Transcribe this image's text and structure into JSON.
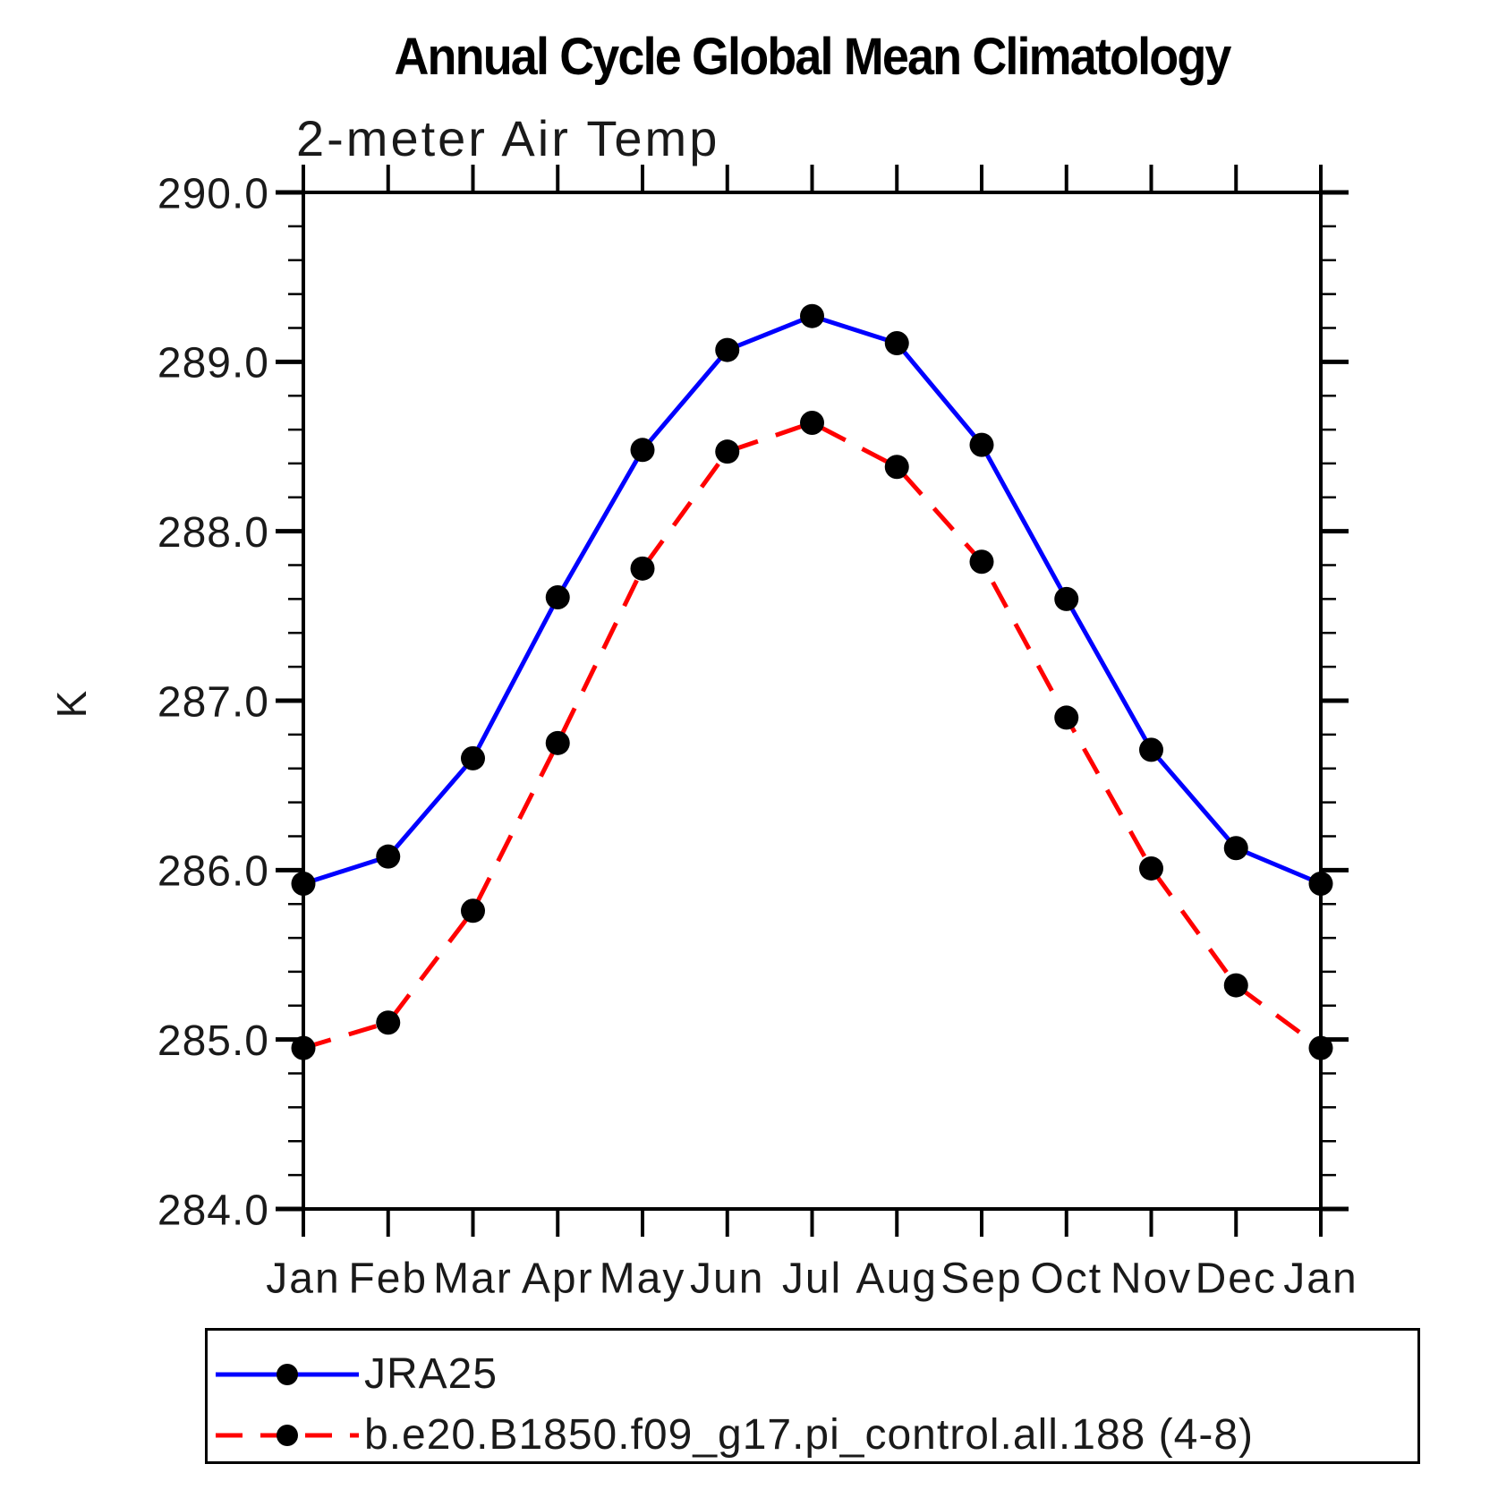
{
  "chart_data": {
    "type": "line",
    "title": "Annual Cycle Global Mean Climatology",
    "subtitle": "2-meter Air Temp",
    "ylabel": "K",
    "x_tick_labels": [
      "Jan",
      "Feb",
      "Mar",
      "Apr",
      "May",
      "Jun",
      "Jul",
      "Aug",
      "Sep",
      "Oct",
      "Nov",
      "Dec",
      "Jan"
    ],
    "y_tick_labels": [
      "290.0",
      "289.0",
      "288.0",
      "287.0",
      "286.0",
      "285.0",
      "284.0"
    ],
    "ylim": [
      284.0,
      290.0
    ],
    "y_major_step": 1.0,
    "y_minor_step": 0.2,
    "grid": false,
    "legend_position": "bottom",
    "axis_color": "#000000",
    "marker_color": "#000000",
    "series": [
      {
        "name": "JRA25",
        "color": "#0000ff",
        "line_style": "solid",
        "marker": "filled-circle",
        "values": [
          285.92,
          286.08,
          286.66,
          287.61,
          288.48,
          289.07,
          289.27,
          289.11,
          288.51,
          287.6,
          286.71,
          286.13,
          285.92
        ]
      },
      {
        "name": "b.e20.B1850.f09_g17.pi_control.all.188 (4-8)",
        "color": "#ff0000",
        "line_style": "dashed",
        "marker": "filled-circle",
        "values": [
          284.95,
          285.1,
          285.76,
          286.75,
          287.78,
          288.47,
          288.64,
          288.38,
          287.82,
          286.9,
          286.01,
          285.32,
          284.95
        ]
      }
    ]
  }
}
